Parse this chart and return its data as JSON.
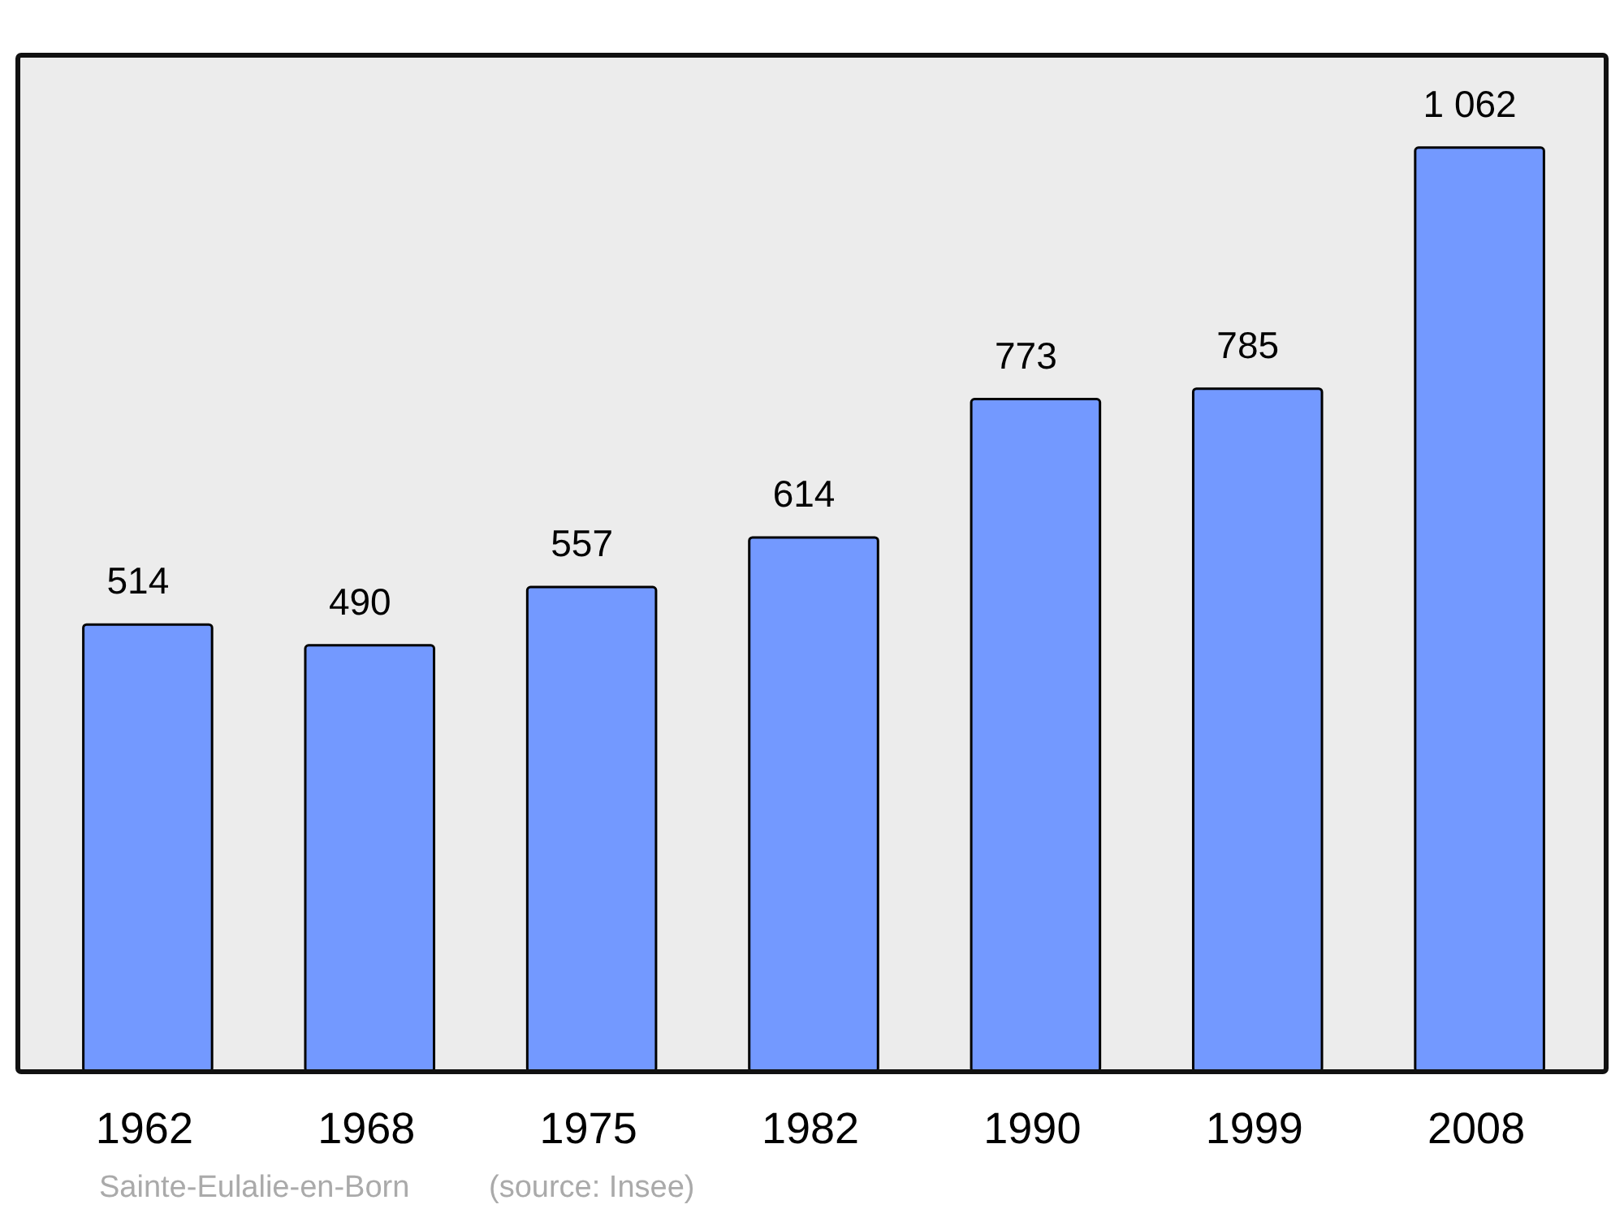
{
  "chart_data": {
    "type": "bar",
    "categories": [
      "1962",
      "1968",
      "1975",
      "1982",
      "1990",
      "1999",
      "2008"
    ],
    "values": [
      514,
      490,
      557,
      614,
      773,
      785,
      1062
    ],
    "value_labels": [
      "514",
      "490",
      "557",
      "614",
      "773",
      "785",
      "1 062"
    ],
    "color": "#7399ff",
    "annotations": [
      "Sainte-Eulalie-en-Born",
      "(source: Insee)"
    ]
  }
}
